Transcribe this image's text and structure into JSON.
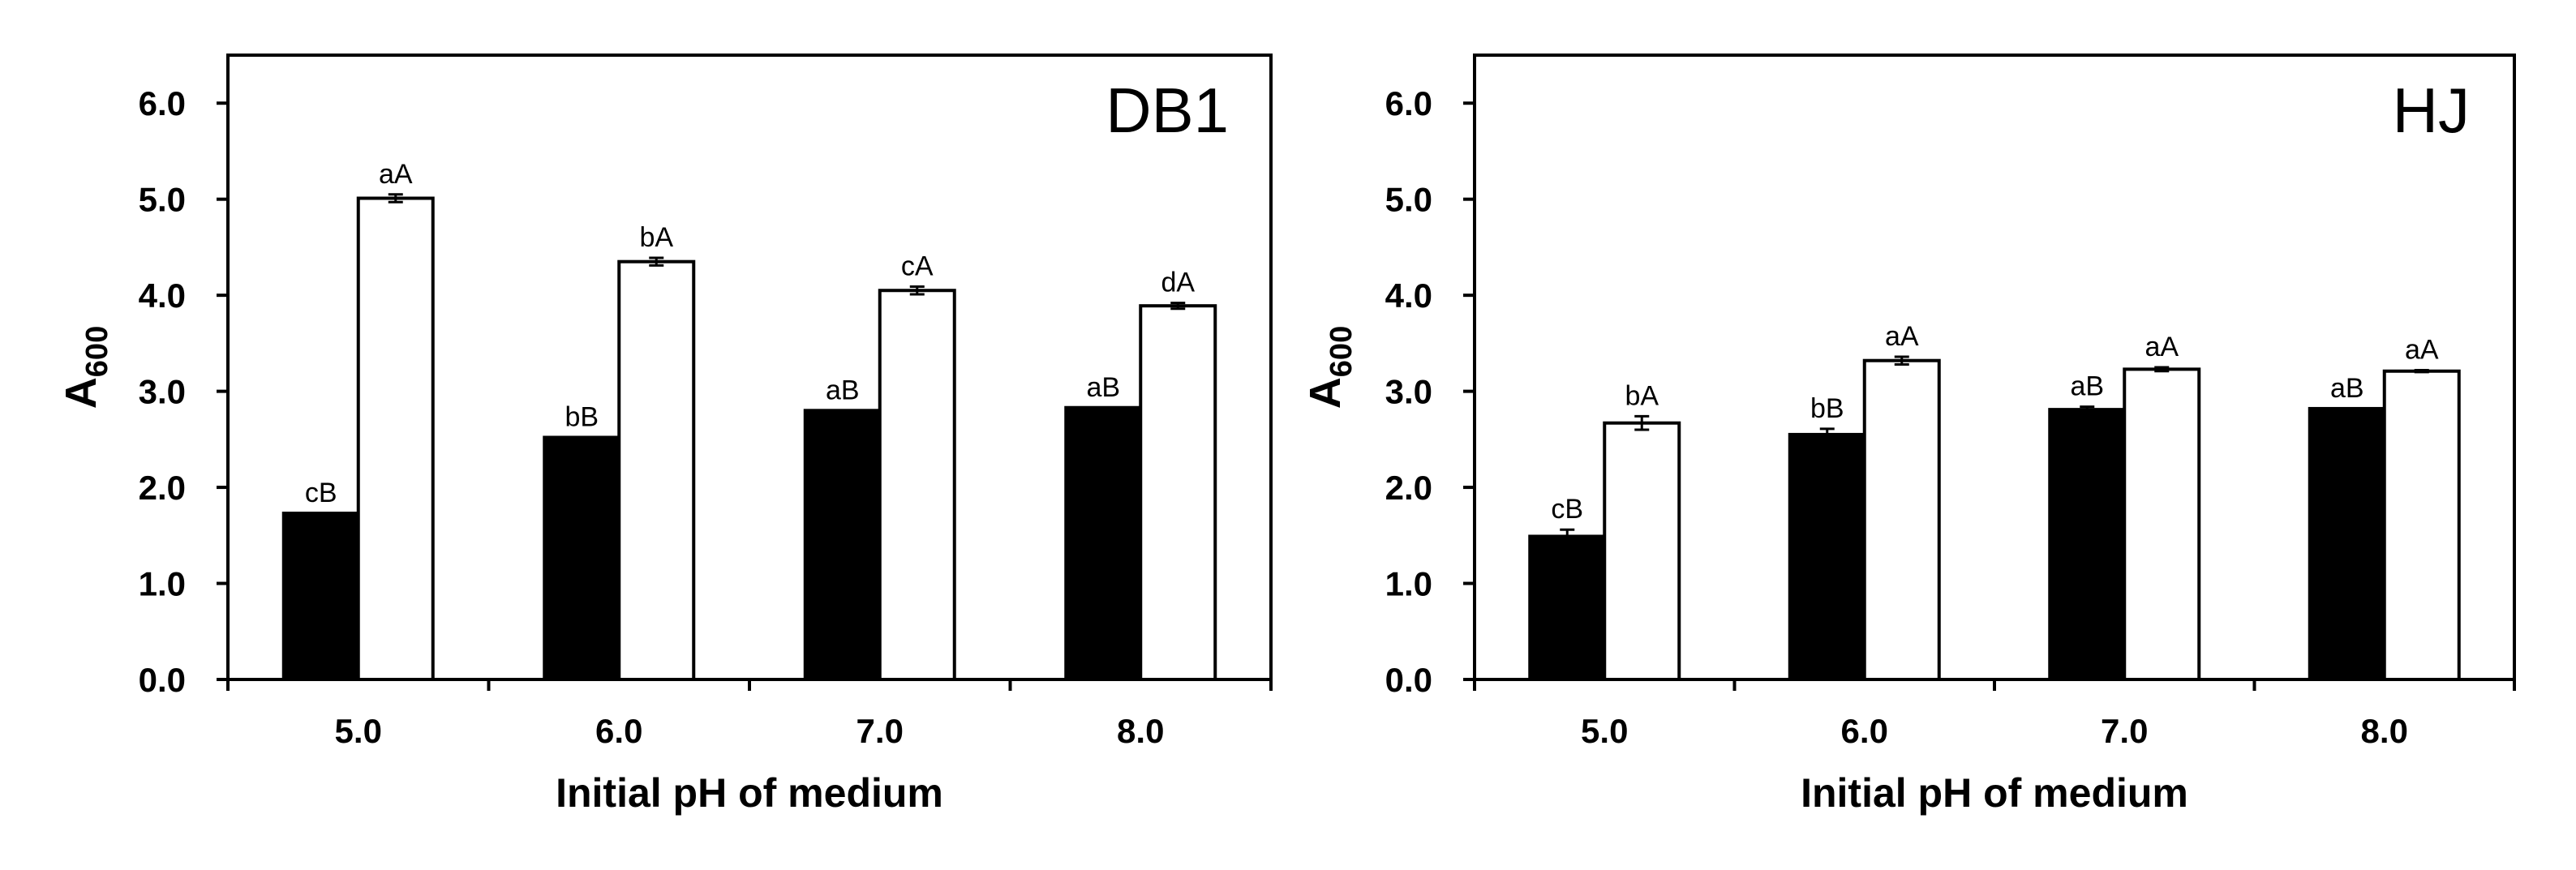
{
  "chart_data": [
    {
      "type": "bar",
      "title": "DB1",
      "xlabel": "Initial pH of medium",
      "ylabel": "A",
      "ylabel_subscript": "600",
      "categories": [
        "5.0",
        "6.0",
        "7.0",
        "8.0"
      ],
      "ylim": [
        0,
        6.5
      ],
      "yticks": [
        "0.0",
        "1.0",
        "2.0",
        "3.0",
        "4.0",
        "5.0",
        "6.0"
      ],
      "grid": false,
      "series": [
        {
          "name": "filled",
          "color": "#000000",
          "values": [
            1.73,
            2.52,
            2.8,
            2.83
          ],
          "errors": [
            0.0,
            0.0,
            0.0,
            0.0
          ],
          "labels": [
            "cB",
            "bB",
            "aB",
            "aB"
          ]
        },
        {
          "name": "open",
          "color": "#ffffff",
          "values": [
            5.01,
            4.35,
            4.05,
            3.89
          ],
          "errors": [
            0.04,
            0.04,
            0.04,
            0.03
          ],
          "labels": [
            "aA",
            "bA",
            "cA",
            "dA"
          ]
        }
      ]
    },
    {
      "type": "bar",
      "title": "HJ",
      "xlabel": "Initial pH of medium",
      "ylabel": "A",
      "ylabel_subscript": "600",
      "categories": [
        "5.0",
        "6.0",
        "7.0",
        "8.0"
      ],
      "ylim": [
        0,
        6.5
      ],
      "yticks": [
        "0.0",
        "1.0",
        "2.0",
        "3.0",
        "4.0",
        "5.0",
        "6.0"
      ],
      "grid": false,
      "series": [
        {
          "name": "filled",
          "color": "#000000",
          "values": [
            1.49,
            2.55,
            2.81,
            2.82
          ],
          "errors": [
            0.07,
            0.06,
            0.03,
            0.0
          ],
          "labels": [
            "cB",
            "bB",
            "aB",
            "aB"
          ]
        },
        {
          "name": "open",
          "color": "#ffffff",
          "values": [
            2.67,
            3.32,
            3.23,
            3.21
          ],
          "errors": [
            0.07,
            0.04,
            0.02,
            0.01
          ],
          "labels": [
            "bA",
            "aA",
            "aA",
            "aA"
          ]
        }
      ]
    }
  ]
}
